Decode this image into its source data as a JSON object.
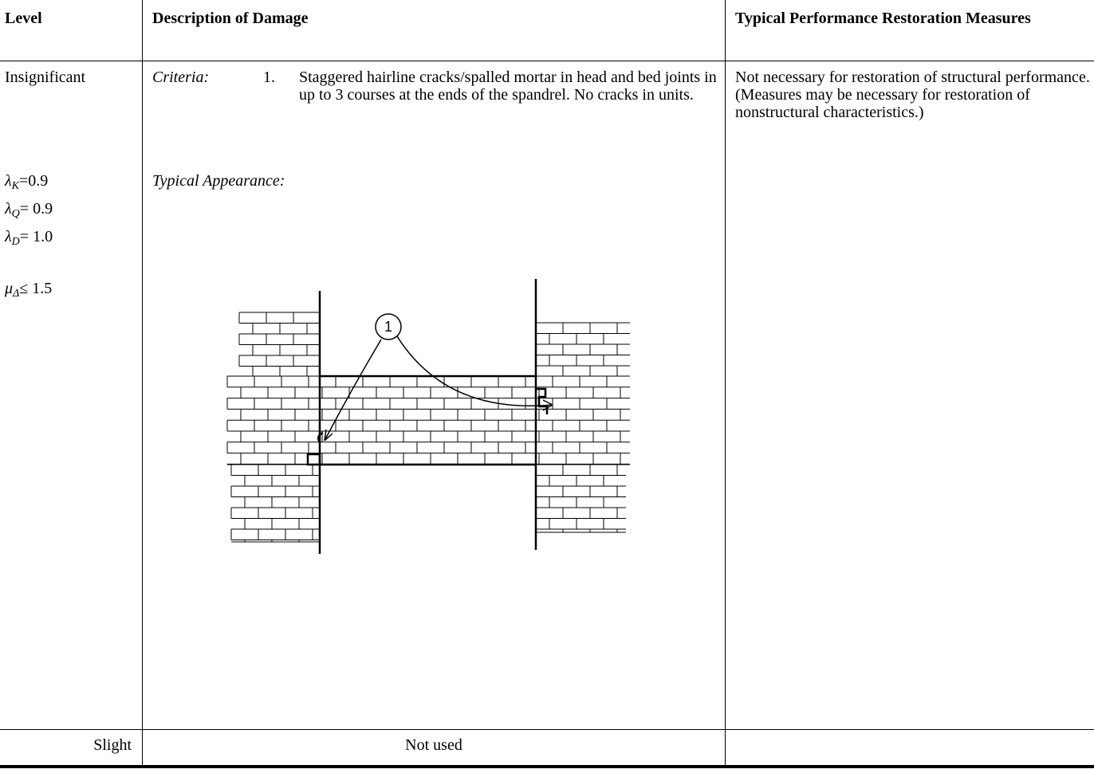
{
  "header": [
    "Level",
    "Description of Damage",
    "Typical Performance Restoration Measures"
  ],
  "rows": [
    {
      "level": "Insignificant",
      "factors": [
        {
          "symbol": "λ",
          "sub": "K",
          "text": "=0.9"
        },
        {
          "symbol": "λ",
          "sub": "Q",
          "text": "= 0.9"
        },
        {
          "symbol": "λ",
          "sub": "D",
          "text": "= 1.0"
        },
        {
          "symbol": "μ",
          "sub": "Δ",
          "text": "≤ 1.5"
        }
      ],
      "criteria_label": "Criteria:",
      "criteria": [
        {
          "number": "1.",
          "text": "Staggered hairline cracks/spalled mortar in head and bed joints in up to 3 courses at the ends of the spandrel. No cracks in units."
        }
      ],
      "appearance_label": "Typical Appearance:",
      "figure_label": "1",
      "measures": "Not necessary for restoration of structural performance. (Measures may be necessary for restoration of nonstructural characteristics.)"
    },
    {
      "level": "Slight",
      "description": "Not used"
    }
  ]
}
